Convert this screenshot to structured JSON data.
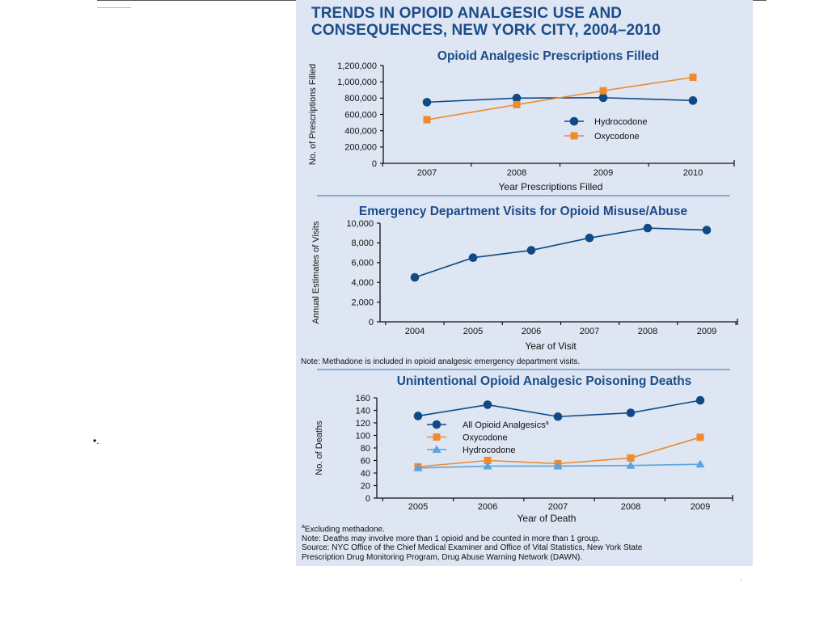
{
  "page": {
    "title_line1": "TRENDS IN OPIOID ANALGESIC USE AND",
    "title_line2": "CONSEQUENCES, NEW YORK CITY, 2004–2010",
    "bullet": "•.",
    "footnote_a_marker": "a",
    "footnote_a": "Excluding methadone.",
    "note_deaths": "Note: Deaths may involve more than 1 opioid and be counted in more than 1 group.",
    "source_line1": "Source: NYC Office of the Chief Medical Examiner and Office of Vital Statistics, New York State",
    "source_line2": "Prescription Drug Monitoring Program, Drug Abuse Warning Network (DAWN)."
  },
  "colors": {
    "panel_bg": "#dde6f2",
    "title": "#1c4c8a",
    "navy_series": "#0f4a86",
    "orange_series": "#f08a2c",
    "light_blue_series": "#5aa4dc",
    "divider": "#8ea9d4"
  },
  "chart_data": [
    {
      "type": "line",
      "title": "Opioid Analgesic Prescriptions Filled",
      "xlabel": "Year Prescriptions Filled",
      "ylabel": "No. of Prescriptions Filled",
      "x": [
        "2007",
        "2008",
        "2009",
        "2010"
      ],
      "ylim": [
        0,
        1200000
      ],
      "yticks": [
        "0",
        "200,000",
        "400,000",
        "600,000",
        "800,000",
        "1,000,000",
        "1,200,000"
      ],
      "legend_position": "right",
      "grid": false,
      "series": [
        {
          "name": "Hydrocodone",
          "marker": "circle",
          "color": "#0f4a86",
          "values": [
            750000,
            800000,
            805000,
            770000
          ]
        },
        {
          "name": "Oxycodone",
          "marker": "square",
          "color": "#f08a2c",
          "values": [
            535000,
            720000,
            890000,
            1055000
          ]
        }
      ]
    },
    {
      "type": "line",
      "title": "Emergency Department Visits for Opioid Misuse/Abuse",
      "xlabel": "Year of Visit",
      "ylabel": "Annual Estimates of Visits",
      "x": [
        "2004",
        "2005",
        "2006",
        "2007",
        "2008",
        "2009"
      ],
      "ylim": [
        0,
        10000
      ],
      "yticks": [
        "0",
        "2,000",
        "4,000",
        "6,000",
        "8,000",
        "10,000"
      ],
      "grid": false,
      "note": "Note: Methadone is included in opioid analgesic emergency department visits.",
      "series": [
        {
          "name": "",
          "marker": "circle",
          "color": "#0f4a86",
          "values": [
            4500,
            6500,
            7250,
            8500,
            9500,
            9300
          ]
        }
      ]
    },
    {
      "type": "line",
      "title": "Unintentional Opioid Analgesic Poisoning Deaths",
      "xlabel": "Year of Death",
      "ylabel": "No. of Deaths",
      "x": [
        "2005",
        "2006",
        "2007",
        "2008",
        "2009"
      ],
      "ylim": [
        0,
        160
      ],
      "yticks": [
        "0",
        "20",
        "40",
        "60",
        "80",
        "100",
        "120",
        "140",
        "160"
      ],
      "legend_position": "left",
      "grid": false,
      "series": [
        {
          "name": "All Opioid Analgesics",
          "name_sup": "a",
          "marker": "circle",
          "color": "#0f4a86",
          "values": [
            131,
            149,
            130,
            136,
            156
          ]
        },
        {
          "name": "Oxycodone",
          "marker": "square",
          "color": "#f08a2c",
          "values": [
            50,
            60,
            55,
            64,
            97
          ]
        },
        {
          "name": "Hydrocodone",
          "marker": "triangle",
          "color": "#5aa4dc",
          "values": [
            48,
            51,
            51,
            52,
            54
          ]
        }
      ]
    }
  ]
}
